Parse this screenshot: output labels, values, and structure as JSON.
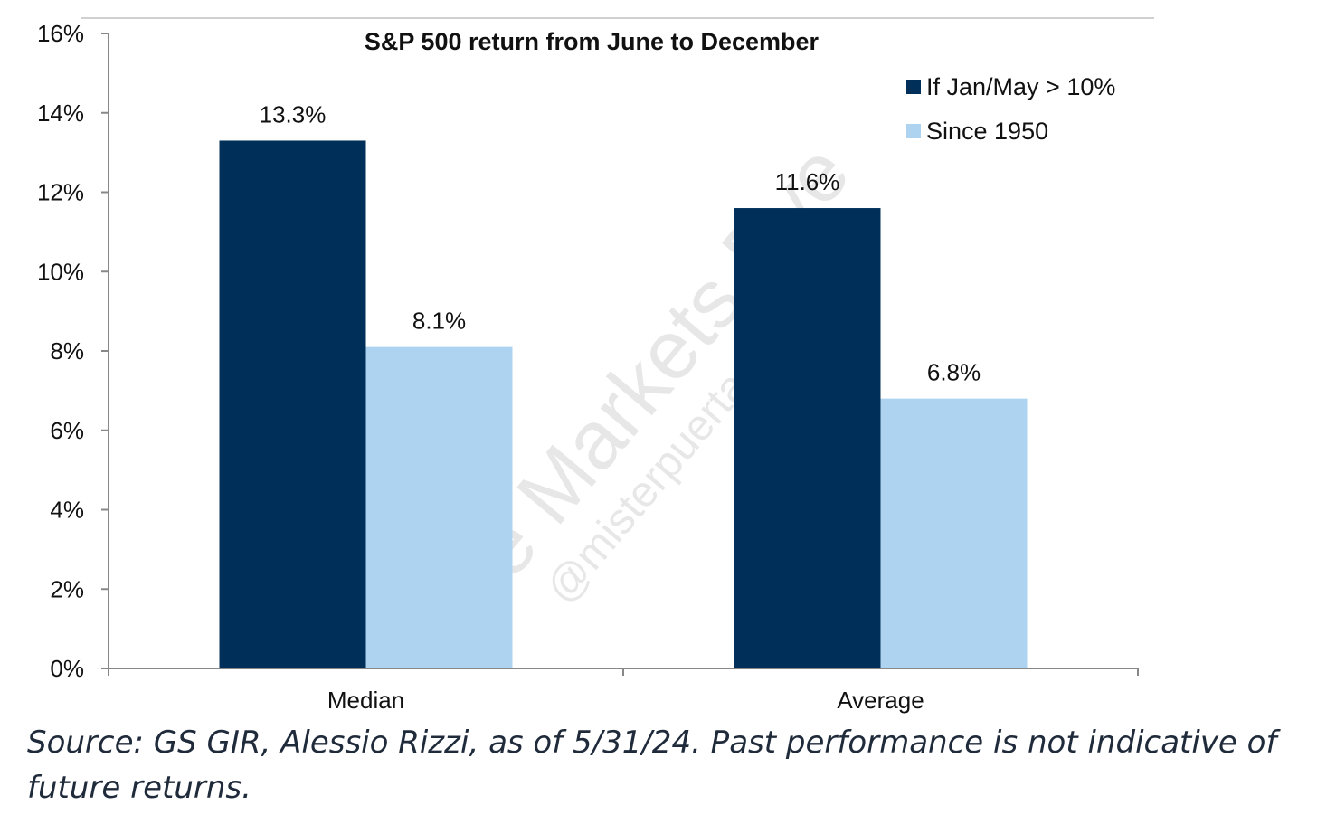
{
  "watermark": {
    "text": "The Markets Eye",
    "handle": "@misterpuertas"
  },
  "source_note": "Source: GS GIR, Alessio Rizzi, as of 5/31/24. Past performance is not indicative of future returns.",
  "colors": {
    "series_1": "#00305a",
    "series_2": "#aed3f0",
    "axis": "#888888",
    "text": "#111111"
  },
  "chart_data": {
    "type": "bar",
    "title": "S&P 500 return from June to December",
    "categories": [
      "Median",
      "Average"
    ],
    "series": [
      {
        "name": "If Jan/May > 10%",
        "values": [
          13.3,
          11.6
        ],
        "labels": [
          "13.3%",
          "11.6%"
        ]
      },
      {
        "name": "Since 1950",
        "values": [
          8.1,
          6.8
        ],
        "labels": [
          "8.1%",
          "6.8%"
        ]
      }
    ],
    "ylim": [
      0,
      16
    ],
    "yticks": [
      0,
      2,
      4,
      6,
      8,
      10,
      12,
      14,
      16
    ],
    "ytick_labels": [
      "0%",
      "2%",
      "4%",
      "6%",
      "8%",
      "10%",
      "12%",
      "14%",
      "16%"
    ],
    "xlabel": "",
    "ylabel": "",
    "legend_position": "top-right",
    "grid": false
  }
}
